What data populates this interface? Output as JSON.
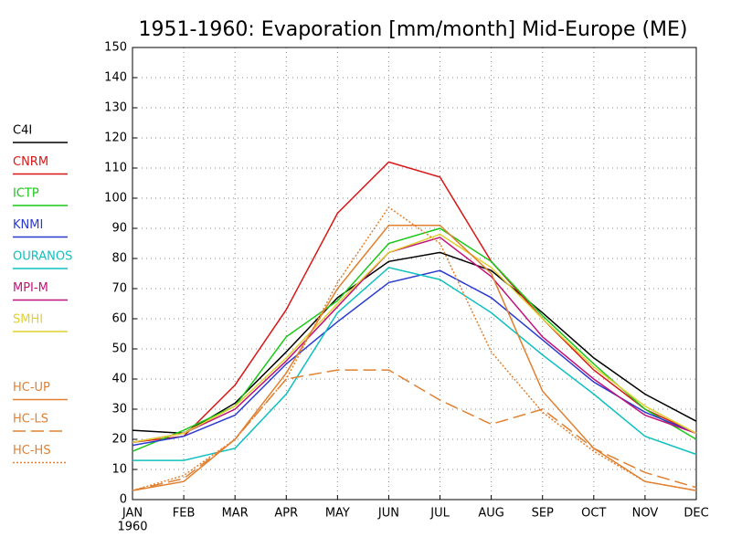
{
  "chart_data": {
    "type": "line",
    "title": "1951-1960: Evaporation [mm/month] Mid-Europe (ME)",
    "categories": [
      "JAN",
      "FEB",
      "MAR",
      "APR",
      "MAY",
      "JUN",
      "JUL",
      "AUG",
      "SEP",
      "OCT",
      "NOV",
      "DEC"
    ],
    "x_sublabel": "1960",
    "ylim": [
      0,
      150
    ],
    "yticks": [
      0,
      10,
      20,
      30,
      40,
      50,
      60,
      70,
      80,
      90,
      100,
      110,
      120,
      130,
      140,
      150
    ],
    "grid": true,
    "legend": "left",
    "series": [
      {
        "name": "C4I",
        "color": "#000000",
        "style": "solid",
        "values": [
          23,
          22,
          32,
          49,
          67,
          79,
          82,
          76,
          62,
          47,
          35,
          26
        ]
      },
      {
        "name": "CNRM",
        "color": "#d81818",
        "style": "solid",
        "values": [
          19,
          21,
          38,
          63,
          95,
          112,
          107,
          79,
          60,
          43,
          30,
          22
        ]
      },
      {
        "name": "ICTP",
        "color": "#18c818",
        "style": "solid",
        "values": [
          16,
          23,
          31,
          54,
          66,
          85,
          90,
          79,
          61,
          45,
          30,
          20
        ]
      },
      {
        "name": "KNMI",
        "color": "#2a3ad0",
        "style": "solid",
        "values": [
          18,
          21,
          28,
          45,
          59,
          72,
          76,
          67,
          53,
          39,
          29,
          22
        ]
      },
      {
        "name": "OURANOS",
        "color": "#10c0c0",
        "style": "solid",
        "values": [
          13,
          13,
          17,
          35,
          62,
          77,
          73,
          62,
          48,
          35,
          21,
          15
        ]
      },
      {
        "name": "MPI-M",
        "color": "#c0127a",
        "style": "solid",
        "values": [
          19,
          22,
          30,
          46,
          64,
          82,
          87,
          74,
          54,
          40,
          28,
          22
        ]
      },
      {
        "name": "SMHI",
        "color": "#e0d030",
        "style": "solid",
        "values": [
          19,
          22,
          31,
          47,
          65,
          82,
          88,
          77,
          60,
          44,
          31,
          22
        ]
      },
      {
        "name": "HC-UP",
        "color": "#e08030",
        "style": "solid",
        "values": [
          3,
          6,
          20,
          42,
          70,
          91,
          91,
          75,
          36,
          17,
          6,
          3
        ]
      },
      {
        "name": "HC-LS",
        "color": "#e08030",
        "style": "dashed",
        "values": [
          3,
          7,
          20,
          40,
          43,
          43,
          33,
          25,
          30,
          17,
          9,
          4
        ]
      },
      {
        "name": "HC-HS",
        "color": "#e08030",
        "style": "dotted",
        "values": [
          3,
          8,
          20,
          40,
          72,
          97,
          85,
          49,
          29,
          16,
          6,
          3
        ]
      }
    ]
  }
}
